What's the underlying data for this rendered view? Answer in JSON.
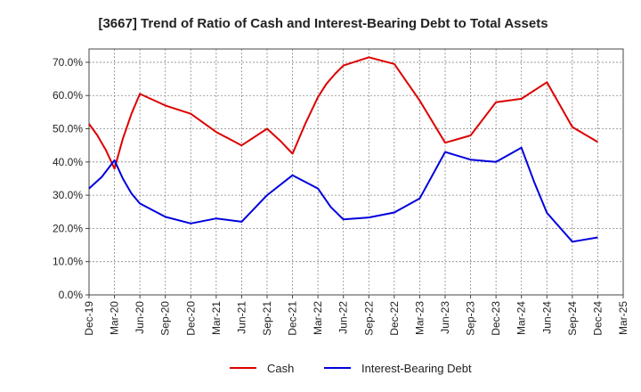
{
  "chart_data": {
    "type": "line",
    "title": "[3667]  Trend of Ratio of Cash and Interest-Bearing Debt to Total Assets",
    "xlabel": "",
    "ylabel": "",
    "ylim": [
      0,
      74
    ],
    "y_ticks": [
      0,
      10,
      20,
      30,
      40,
      50,
      60,
      70
    ],
    "y_tick_labels": [
      "0.0%",
      "10.0%",
      "20.0%",
      "30.0%",
      "40.0%",
      "50.0%",
      "60.0%",
      "70.0%"
    ],
    "x_tick_labels": [
      "Dec-19",
      "Mar-20",
      "Jun-20",
      "Sep-20",
      "Dec-20",
      "Mar-21",
      "Jun-21",
      "Sep-21",
      "Dec-21",
      "Mar-22",
      "Jun-22",
      "Sep-22",
      "Dec-22",
      "Mar-23",
      "Jun-23",
      "Sep-23",
      "Dec-23",
      "Mar-24",
      "Jun-24",
      "Sep-24",
      "Dec-24",
      "Mar-25"
    ],
    "grid": true,
    "legend_position": "bottom-center",
    "series": [
      {
        "name": "Cash",
        "color": "#dd0000",
        "points": [
          [
            0,
            51.5
          ],
          [
            0.33,
            48.0
          ],
          [
            0.67,
            43.5
          ],
          [
            1,
            38.0
          ],
          [
            1.33,
            47.0
          ],
          [
            1.67,
            54.5
          ],
          [
            2,
            60.5
          ],
          [
            3,
            57.0
          ],
          [
            4,
            54.5
          ],
          [
            5,
            49.0
          ],
          [
            6,
            45.0
          ],
          [
            7,
            50.0
          ],
          [
            7.5,
            46.5
          ],
          [
            8,
            42.5
          ],
          [
            8.5,
            51.5
          ],
          [
            9,
            59.5
          ],
          [
            9.33,
            63.5
          ],
          [
            9.67,
            66.5
          ],
          [
            10,
            69.0
          ],
          [
            11,
            71.5
          ],
          [
            12,
            69.5
          ],
          [
            13,
            58.5
          ],
          [
            14,
            45.8
          ],
          [
            15,
            48.0
          ],
          [
            16,
            58.0
          ],
          [
            17,
            59.0
          ],
          [
            18,
            64.0
          ],
          [
            19,
            50.5
          ],
          [
            20,
            46.0
          ]
        ]
      },
      {
        "name": "Interest-Bearing Debt",
        "color": "#0000dd",
        "points": [
          [
            0,
            32.0
          ],
          [
            0.5,
            35.5
          ],
          [
            1,
            40.5
          ],
          [
            1.33,
            35.0
          ],
          [
            1.67,
            30.5
          ],
          [
            2,
            27.5
          ],
          [
            3,
            23.5
          ],
          [
            4,
            21.5
          ],
          [
            5,
            23.0
          ],
          [
            6,
            22.0
          ],
          [
            7,
            30.0
          ],
          [
            8,
            36.0
          ],
          [
            9,
            32.0
          ],
          [
            9.5,
            26.5
          ],
          [
            10,
            22.7
          ],
          [
            11,
            23.3
          ],
          [
            12,
            24.8
          ],
          [
            13,
            29.0
          ],
          [
            14,
            43.0
          ],
          [
            15,
            40.7
          ],
          [
            16,
            40.0
          ],
          [
            17,
            44.3
          ],
          [
            17.5,
            34.0
          ],
          [
            18,
            24.7
          ],
          [
            19,
            16.0
          ],
          [
            20,
            17.3
          ]
        ]
      }
    ]
  }
}
